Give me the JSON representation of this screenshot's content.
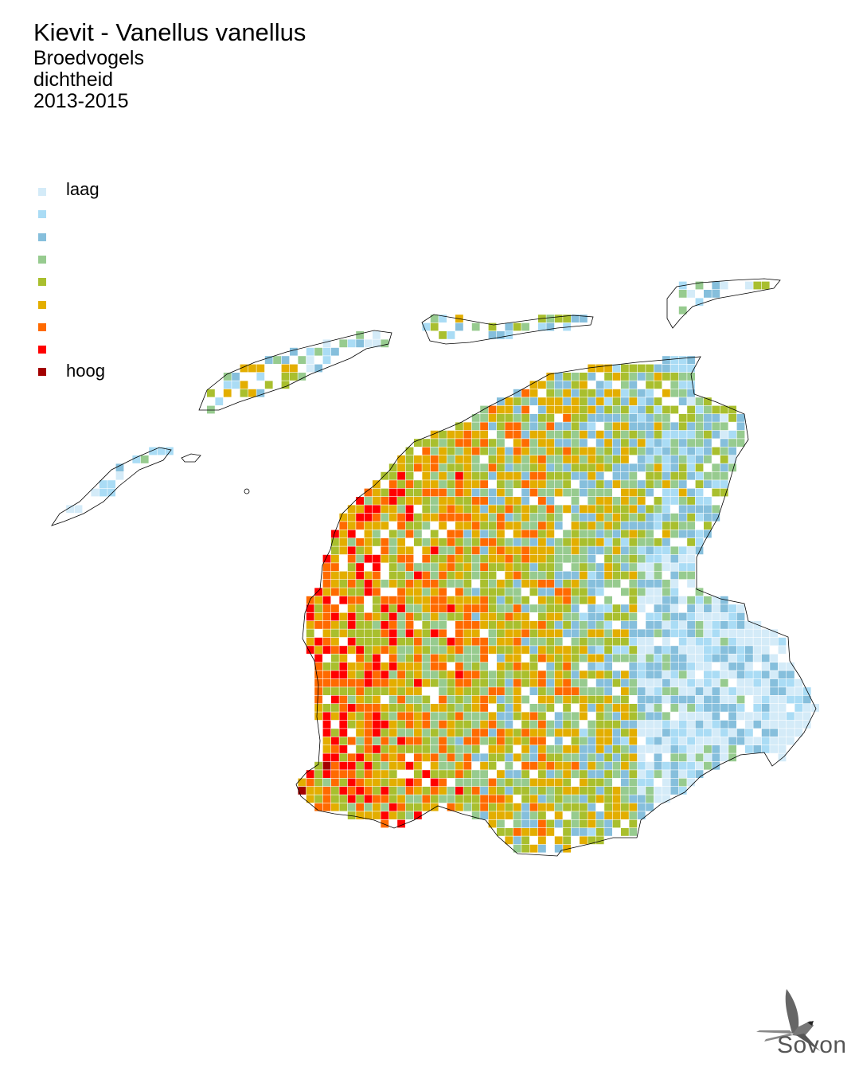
{
  "header": {
    "title": "Kievit - Vanellus vanellus",
    "subtitle_lines": [
      "Broedvogels",
      "dichtheid",
      "2013-2015"
    ]
  },
  "legend": {
    "low_label": "laag",
    "high_label": "hoog",
    "classes": [
      "#d4ebf8",
      "#aadcf5",
      "#86bfdc",
      "#97cb8f",
      "#a9bf2e",
      "#e3ae00",
      "#ff6a00",
      "#ff0000",
      "#a30000"
    ]
  },
  "map": {
    "outline_color": "#000000",
    "background": "#ffffff"
  },
  "logo": {
    "text": "Sovon",
    "icon": "swallow-icon"
  }
}
